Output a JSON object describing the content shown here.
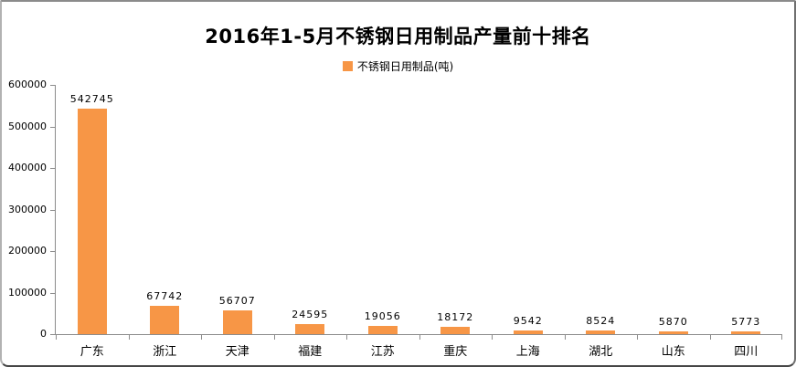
{
  "chart_data": {
    "type": "bar",
    "title": "2016年1-5月不锈钢日用制品产量前十排名",
    "legend": [
      {
        "label": "不锈钢日用制品(吨)",
        "color": "#F79646"
      }
    ],
    "legend_position": "top",
    "categories": [
      "广东",
      "浙江",
      "天津",
      "福建",
      "江苏",
      "重庆",
      "上海",
      "湖北",
      "山东",
      "四川"
    ],
    "values": [
      542745,
      67742,
      56707,
      24595,
      19056,
      18172,
      9542,
      8524,
      5870,
      5773
    ],
    "value_labels": [
      "542745",
      "67742",
      "56707",
      "24595",
      "19056",
      "18172",
      "9542",
      "8524",
      "5870",
      "5773"
    ],
    "xlabel": "",
    "ylabel": "",
    "ylim": [
      0,
      600000
    ],
    "ytick_step": 100000,
    "yticks": [
      600000,
      500000,
      400000,
      300000,
      200000,
      100000,
      0
    ],
    "grid": false,
    "bar_color": "#F79646",
    "axis_color": "#8c8c8c",
    "text_color": "#000000",
    "background_color": "#ffffff"
  }
}
